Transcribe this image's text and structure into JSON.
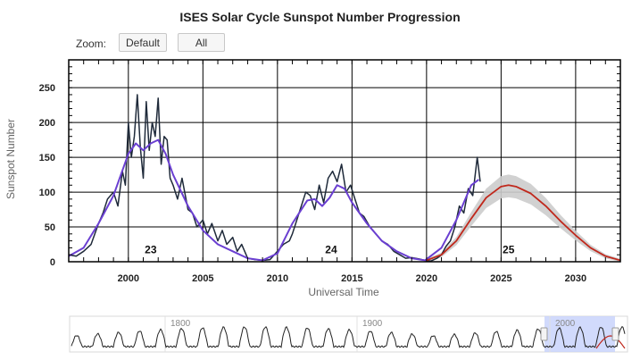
{
  "header": {
    "zoom_label": "Zoom:",
    "zoom_default": "Default",
    "zoom_all": "All"
  },
  "colors": {
    "observed": "#1f2a3a",
    "smoothed": "#6a3fd1",
    "predicted": "#c0281c",
    "prediction_band": "#cccccc",
    "navigator_selection": "#c9d3fb"
  },
  "chart_data": {
    "type": "line",
    "title": "ISES Solar Cycle Sunspot Number Progression",
    "xlabel": "Universal Time",
    "ylabel": "Sunspot Number",
    "xlim": [
      1996.0,
      2033.0
    ],
    "ylim": [
      0,
      290
    ],
    "x_ticks": [
      2000,
      2005,
      2010,
      2015,
      2020,
      2025,
      2030
    ],
    "y_ticks": [
      0,
      50,
      100,
      150,
      200,
      250
    ],
    "grid": true,
    "cycle_labels": [
      {
        "text": "23",
        "x": 2001.5,
        "y": 12
      },
      {
        "text": "24",
        "x": 2013.6,
        "y": 12
      },
      {
        "text": "25",
        "x": 2025.5,
        "y": 12
      }
    ],
    "series": [
      {
        "role": "monthly observed",
        "x": [
          1996.0,
          1996.5,
          1997.0,
          1997.5,
          1998.0,
          1998.3,
          1998.6,
          1999.0,
          1999.3,
          1999.6,
          1999.8,
          2000.0,
          2000.2,
          2000.4,
          2000.6,
          2000.8,
          2001.0,
          2001.2,
          2001.4,
          2001.6,
          2001.8,
          2002.0,
          2002.2,
          2002.4,
          2002.6,
          2002.8,
          2003.0,
          2003.3,
          2003.6,
          2004.0,
          2004.3,
          2004.6,
          2005.0,
          2005.3,
          2005.6,
          2006.0,
          2006.3,
          2006.6,
          2007.0,
          2007.3,
          2007.6,
          2008.0,
          2008.5,
          2009.0,
          2009.5,
          2010.0,
          2010.4,
          2010.8,
          2011.0,
          2011.3,
          2011.6,
          2011.9,
          2012.2,
          2012.5,
          2012.8,
          2013.1,
          2013.4,
          2013.7,
          2014.0,
          2014.3,
          2014.6,
          2014.9,
          2015.2,
          2015.5,
          2015.8,
          2016.2,
          2016.6,
          2017.0,
          2017.4,
          2017.8,
          2018.2,
          2018.6,
          2019.0,
          2019.5,
          2019.9,
          2020.3,
          2020.7,
          2021.0,
          2021.3,
          2021.6,
          2021.9,
          2022.2,
          2022.5,
          2022.8,
          2023.1,
          2023.4,
          2023.6
        ],
        "y": [
          10,
          8,
          15,
          25,
          55,
          70,
          90,
          100,
          80,
          130,
          110,
          200,
          150,
          180,
          240,
          165,
          120,
          230,
          160,
          200,
          180,
          235,
          140,
          180,
          175,
          120,
          110,
          90,
          120,
          75,
          70,
          50,
          60,
          40,
          55,
          30,
          45,
          25,
          35,
          15,
          25,
          5,
          3,
          2,
          3,
          15,
          25,
          30,
          40,
          60,
          80,
          100,
          95,
          75,
          110,
          85,
          120,
          130,
          115,
          140,
          100,
          110,
          90,
          70,
          65,
          50,
          40,
          30,
          25,
          15,
          10,
          5,
          6,
          4,
          2,
          1,
          5,
          10,
          22,
          30,
          50,
          80,
          70,
          105,
          95,
          150,
          115
        ]
      },
      {
        "role": "smoothed",
        "x": [
          1996.0,
          1997.0,
          1998.0,
          1999.0,
          2000.0,
          2000.5,
          2001.0,
          2001.5,
          2002.0,
          2002.5,
          2003.0,
          2004.0,
          2005.0,
          2006.0,
          2007.0,
          2008.0,
          2009.0,
          2010.0,
          2011.0,
          2012.0,
          2012.5,
          2013.0,
          2013.5,
          2014.0,
          2014.5,
          2015.0,
          2016.0,
          2017.0,
          2018.0,
          2019.0,
          2019.9,
          2021.0,
          2022.0,
          2023.0,
          2023.5
        ],
        "y": [
          8,
          20,
          55,
          95,
          155,
          170,
          160,
          170,
          175,
          155,
          125,
          80,
          45,
          25,
          15,
          5,
          2,
          12,
          55,
          88,
          90,
          80,
          92,
          110,
          105,
          85,
          55,
          30,
          15,
          5,
          2,
          20,
          60,
          110,
          118
        ]
      },
      {
        "role": "predicted",
        "x": [
          2020.0,
          2021.0,
          2022.0,
          2023.0,
          2024.0,
          2025.0,
          2025.5,
          2026.0,
          2027.0,
          2028.0,
          2029.0,
          2030.0,
          2031.0,
          2032.0,
          2033.0
        ],
        "y": [
          2,
          10,
          30,
          62,
          92,
          108,
          110,
          108,
          98,
          80,
          58,
          38,
          20,
          8,
          2
        ]
      }
    ]
  },
  "navigator": {
    "labels": [
      "1800",
      "1900",
      "2000"
    ]
  }
}
